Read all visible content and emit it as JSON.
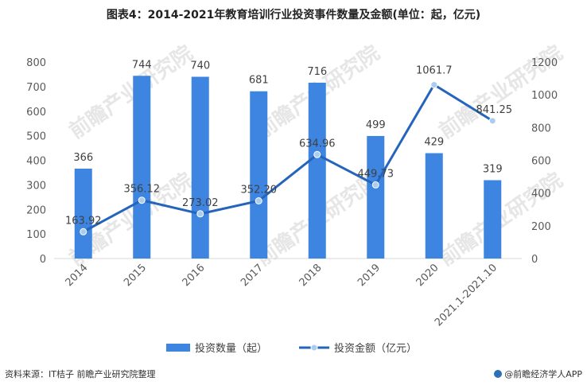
{
  "header": {
    "title": "图表4：2014-2021年教育培训行业投资事件数量及金额(单位：起，亿元)"
  },
  "footer": {
    "source": "资料来源：IT桔子 前瞻产业研究院整理",
    "brand": "@前瞻经济学人APP"
  },
  "watermark": {
    "text": "前瞻产业研究院"
  },
  "colors": {
    "bar": "#3d85e0",
    "line": "#2464bd",
    "marker": "#a9ccef",
    "axis_text": "#595959"
  },
  "chart_data": {
    "type": "bar",
    "categories": [
      "2014",
      "2015",
      "2016",
      "2017",
      "2018",
      "2019",
      "2020",
      "2021.1-2021.10"
    ],
    "series": [
      {
        "name": "投资数量（起）",
        "type": "bar",
        "axis": "left",
        "values": [
          366,
          744,
          740,
          681,
          716,
          499,
          429,
          319
        ],
        "labels": [
          "366",
          "744",
          "740",
          "681",
          "716",
          "499",
          "429",
          "319"
        ]
      },
      {
        "name": "投资金额（亿元）",
        "type": "line",
        "axis": "right",
        "values": [
          163.92,
          356.12,
          273.02,
          352.2,
          634.96,
          449.73,
          1061.7,
          841.25
        ],
        "labels": [
          "163.92",
          "356.12",
          "273.02",
          "352.20",
          "634.96",
          "449.73",
          "1061.7",
          "841.25"
        ]
      }
    ],
    "y_left": {
      "min": 0,
      "max": 800,
      "ticks": [
        "0",
        "100",
        "200",
        "300",
        "400",
        "500",
        "600",
        "700",
        "800"
      ]
    },
    "y_right": {
      "min": 0,
      "max": 1200,
      "ticks": [
        "0",
        "200",
        "400",
        "600",
        "800",
        "1000",
        "1200"
      ]
    },
    "xlabel": "",
    "ylabel": "",
    "grid": false,
    "legend_position": "bottom"
  }
}
